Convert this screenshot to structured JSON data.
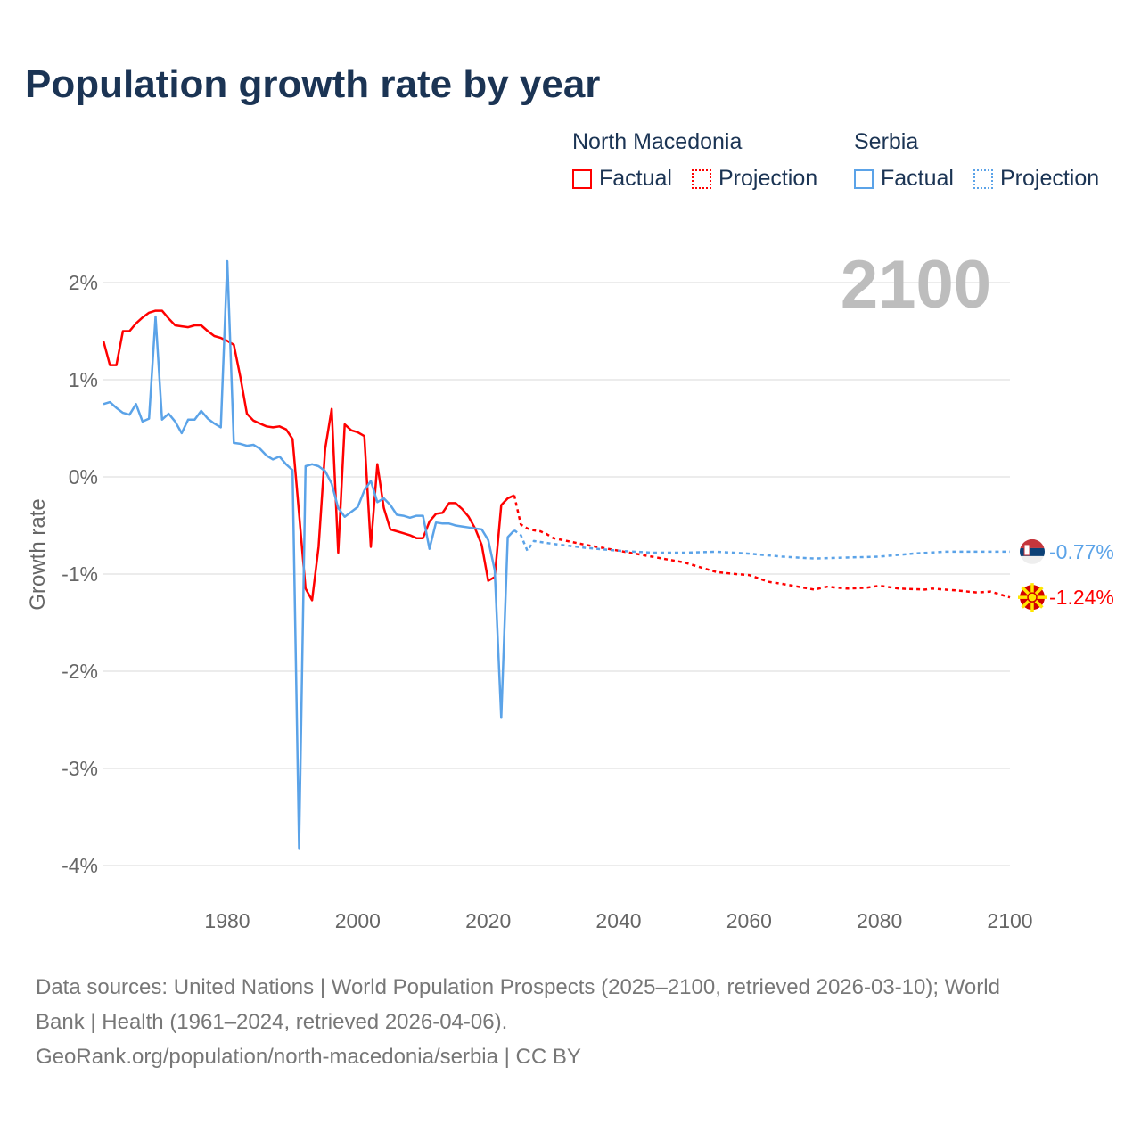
{
  "title": "Population growth rate by year",
  "year_overlay": "2100",
  "legend": {
    "groups": [
      {
        "name": "North Macedonia",
        "items": [
          {
            "label": "Factual",
            "style": "solid"
          },
          {
            "label": "Projection",
            "style": "dotted"
          }
        ],
        "color": "#ff0000"
      },
      {
        "name": "Serbia",
        "items": [
          {
            "label": "Factual",
            "style": "solid"
          },
          {
            "label": "Projection",
            "style": "dotted"
          }
        ],
        "color": "#5ba3e8"
      }
    ]
  },
  "footer": {
    "line1": "Data sources: United Nations | World Population Prospects (2025–2100, retrieved 2026-03-10); World",
    "line2": "Bank | Health (1961–2024, retrieved 2026-04-06).",
    "line3": "GeoRank.org/population/north-macedonia/serbia | CC BY"
  },
  "chart_data": {
    "type": "line",
    "title": "Population growth rate by year",
    "xlabel": "",
    "ylabel": "Growth rate",
    "xlim": [
      1961,
      2100
    ],
    "ylim": [
      -4,
      2
    ],
    "x_ticks": [
      1980,
      2000,
      2020,
      2040,
      2060,
      2080,
      2100
    ],
    "y_ticks": [
      {
        "v": 2,
        "label": "2%"
      },
      {
        "v": 1,
        "label": "1%"
      },
      {
        "v": 0,
        "label": "0%"
      },
      {
        "v": -1,
        "label": "-1%"
      },
      {
        "v": -2,
        "label": "-2%"
      },
      {
        "v": -3,
        "label": "-3%"
      },
      {
        "v": -4,
        "label": "-4%"
      }
    ],
    "grid": true,
    "series": [
      {
        "name": "North Macedonia",
        "kind": "Factual",
        "color": "#ff0000",
        "dashed": false,
        "x_start": 1961,
        "values": [
          1.4,
          1.15,
          1.15,
          1.5,
          1.5,
          1.58,
          1.64,
          1.69,
          1.71,
          1.71,
          1.63,
          1.56,
          1.55,
          1.54,
          1.56,
          1.56,
          1.5,
          1.45,
          1.43,
          1.4,
          1.36,
          1.03,
          0.65,
          0.58,
          0.55,
          0.52,
          0.51,
          0.52,
          0.49,
          0.39,
          -0.38,
          -1.15,
          -1.27,
          -0.72,
          0.29,
          0.7,
          -0.78,
          0.54,
          0.48,
          0.46,
          0.42,
          -0.72,
          0.13,
          -0.32,
          -0.54,
          -0.56,
          -0.58,
          -0.6,
          -0.63,
          -0.63,
          -0.46,
          -0.38,
          -0.37,
          -0.27,
          -0.27,
          -0.33,
          -0.41,
          -0.53,
          -0.7,
          -1.07,
          -1.03,
          -0.29,
          -0.22,
          -0.19
        ]
      },
      {
        "name": "North Macedonia",
        "kind": "Projection",
        "color": "#ff0000",
        "dashed": true,
        "x": [
          2024,
          2025,
          2026,
          2027,
          2028,
          2029,
          2030,
          2035,
          2040,
          2045,
          2050,
          2055,
          2058,
          2060,
          2063,
          2065,
          2070,
          2072,
          2075,
          2078,
          2080,
          2083,
          2087,
          2088,
          2092,
          2095,
          2097,
          2100
        ],
        "values": [
          -0.19,
          -0.49,
          -0.53,
          -0.55,
          -0.56,
          -0.59,
          -0.63,
          -0.7,
          -0.76,
          -0.82,
          -0.88,
          -0.98,
          -1.0,
          -1.01,
          -1.08,
          -1.1,
          -1.16,
          -1.13,
          -1.15,
          -1.14,
          -1.12,
          -1.15,
          -1.16,
          -1.15,
          -1.17,
          -1.19,
          -1.18,
          -1.24
        ]
      },
      {
        "name": "Serbia",
        "kind": "Factual",
        "color": "#5ba3e8",
        "dashed": false,
        "x_start": 1961,
        "values": [
          0.75,
          0.77,
          0.71,
          0.66,
          0.64,
          0.75,
          0.57,
          0.6,
          1.65,
          0.59,
          0.65,
          0.57,
          0.45,
          0.59,
          0.59,
          0.68,
          0.6,
          0.55,
          0.51,
          2.22,
          0.35,
          0.34,
          0.32,
          0.33,
          0.29,
          0.22,
          0.18,
          0.21,
          0.13,
          0.07,
          -3.82,
          0.11,
          0.13,
          0.11,
          0.06,
          -0.07,
          -0.32,
          -0.41,
          -0.36,
          -0.31,
          -0.14,
          -0.04,
          -0.26,
          -0.22,
          -0.29,
          -0.39,
          -0.4,
          -0.42,
          -0.4,
          -0.4,
          -0.74,
          -0.47,
          -0.48,
          -0.48,
          -0.5,
          -0.51,
          -0.52,
          -0.53,
          -0.54,
          -0.65,
          -0.96,
          -2.48,
          -0.62,
          -0.55
        ]
      },
      {
        "name": "Serbia",
        "kind": "Projection",
        "color": "#5ba3e8",
        "dashed": true,
        "x": [
          2024,
          2025,
          2026,
          2027,
          2028,
          2030,
          2035,
          2040,
          2045,
          2050,
          2055,
          2060,
          2065,
          2070,
          2075,
          2080,
          2085,
          2090,
          2095,
          2100
        ],
        "values": [
          -0.55,
          -0.6,
          -0.76,
          -0.66,
          -0.67,
          -0.69,
          -0.73,
          -0.76,
          -0.78,
          -0.78,
          -0.77,
          -0.79,
          -0.82,
          -0.84,
          -0.83,
          -0.82,
          -0.79,
          -0.77,
          -0.77,
          -0.77
        ]
      }
    ],
    "end_labels": [
      {
        "country": "Serbia",
        "label": "-0.77%",
        "value": -0.77,
        "color": "#5ba3e8"
      },
      {
        "country": "North Macedonia",
        "label": "-1.24%",
        "value": -1.24,
        "color": "#ff0000"
      }
    ]
  }
}
